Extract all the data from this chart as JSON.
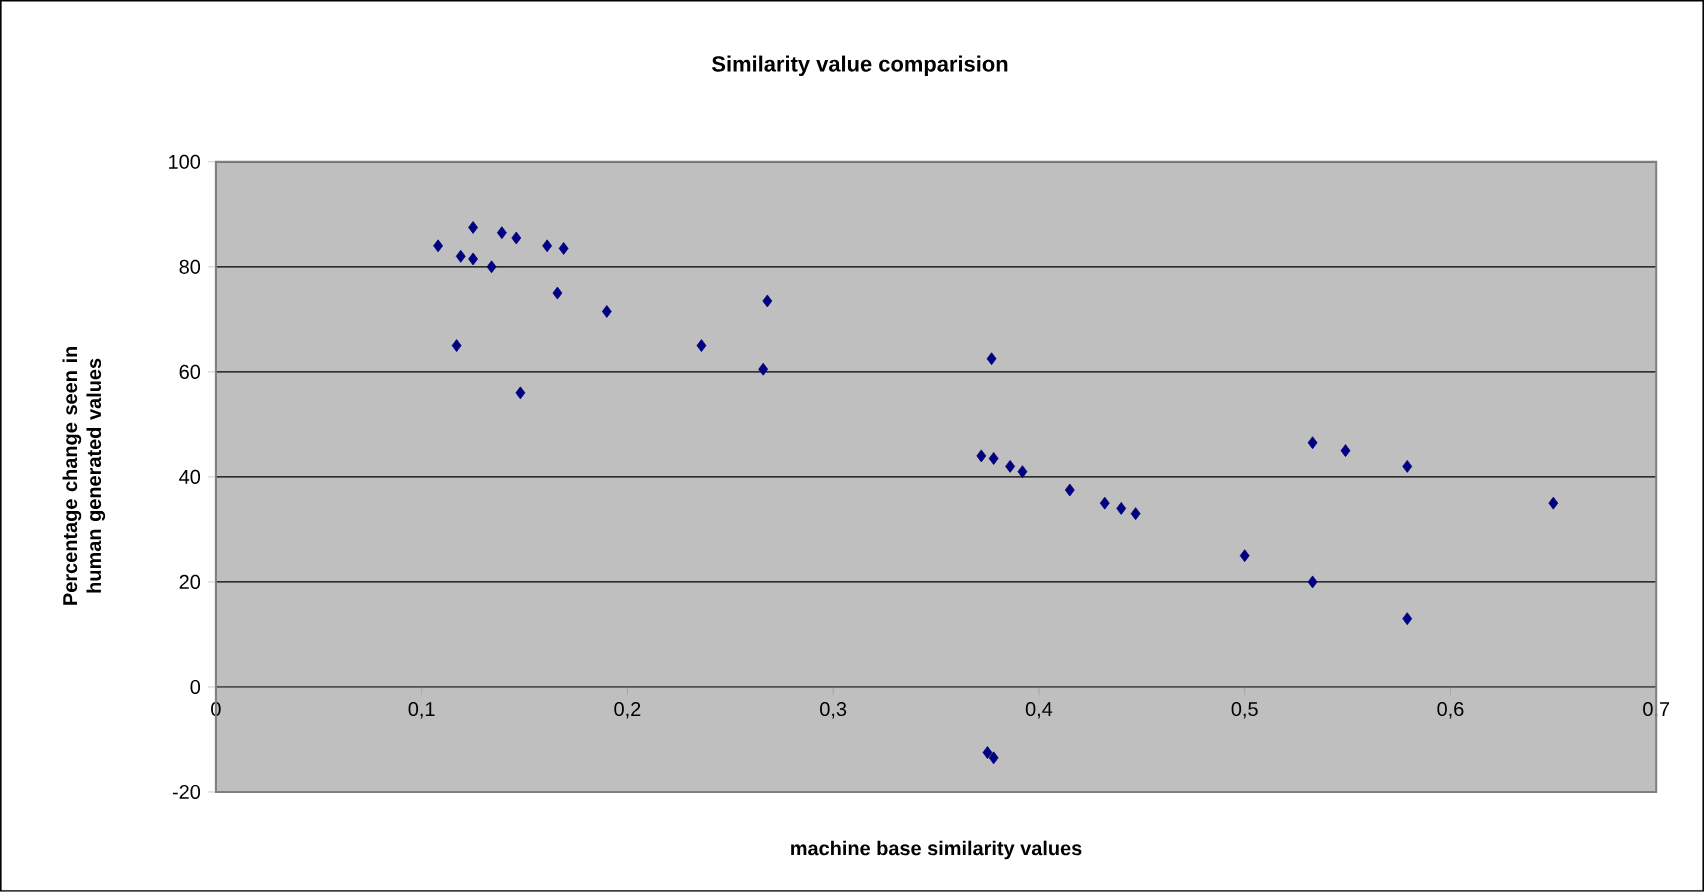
{
  "chart_data": {
    "type": "scatter",
    "title": "Similarity value comparision",
    "xlabel": "machine base similarity values",
    "ylabel": "Percentage change seen in human generated values",
    "x": [
      0.108,
      0.117,
      0.119,
      0.125,
      0.125,
      0.134,
      0.139,
      0.146,
      0.148,
      0.161,
      0.166,
      0.169,
      0.19,
      0.236,
      0.266,
      0.268,
      0.372,
      0.377,
      0.378,
      0.386,
      0.392,
      0.415,
      0.432,
      0.44,
      0.447,
      0.375,
      0.378,
      0.5,
      0.533,
      0.533,
      0.549,
      0.579,
      0.579,
      0.65
    ],
    "values": [
      84,
      65,
      82,
      87.5,
      81.5,
      80,
      86.5,
      85.5,
      56,
      84,
      75,
      83.5,
      71.5,
      65,
      60.5,
      73.5,
      44,
      62.5,
      43.5,
      42,
      41,
      37.5,
      35,
      34,
      33,
      -12.5,
      -13.5,
      25,
      46.5,
      20,
      45,
      42,
      13,
      35
    ],
    "color": "#000080",
    "marker": "diamond",
    "xlim": [
      0,
      0.7
    ],
    "ylim": [
      -20,
      100
    ],
    "xticks": [
      {
        "value": 0,
        "label": "0"
      },
      {
        "value": 0.1,
        "label": "0,1"
      },
      {
        "value": 0.2,
        "label": "0,2"
      },
      {
        "value": 0.3,
        "label": "0,3"
      },
      {
        "value": 0.4,
        "label": "0,4"
      },
      {
        "value": 0.5,
        "label": "0,5"
      },
      {
        "value": 0.6,
        "label": "0,6"
      },
      {
        "value": 0.7,
        "label": "0,7"
      }
    ],
    "yticks": [
      -20,
      0,
      20,
      40,
      60,
      80,
      100
    ],
    "grid": "y"
  }
}
